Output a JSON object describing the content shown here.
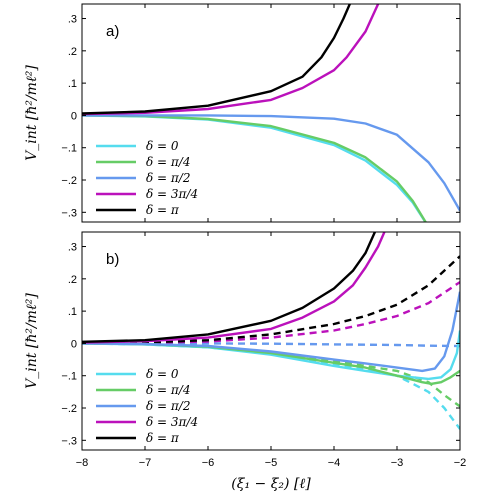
{
  "chart_data": [
    {
      "type": "line",
      "panel_label": "a)",
      "ylabel": "V_int [ħ²/mℓ²]",
      "xlabel": "",
      "xlim": [
        -8,
        -2
      ],
      "ylim": [
        -0.33,
        0.345
      ],
      "x_ticks": [
        -8,
        -7,
        -6,
        -5,
        -4,
        -3,
        -2
      ],
      "y_ticks": [
        -0.3,
        -0.2,
        -0.1,
        0,
        0.1,
        0.2,
        0.3
      ],
      "x_tick_labels_shown": false,
      "legend_position": "lower-left",
      "series": [
        {
          "name": "δ = 0",
          "color": "#55dcee",
          "style": "solid",
          "points": [
            [
              -8,
              0
            ],
            [
              -7,
              -0.003
            ],
            [
              -6,
              -0.013
            ],
            [
              -5,
              -0.038
            ],
            [
              -4,
              -0.092
            ],
            [
              -3.5,
              -0.14
            ],
            [
              -3,
              -0.215
            ],
            [
              -2.75,
              -0.27
            ],
            [
              -2.5,
              -0.345
            ]
          ]
        },
        {
          "name": "δ = π/4",
          "color": "#66cc66",
          "style": "solid",
          "points": [
            [
              -8,
              0
            ],
            [
              -7,
              -0.002
            ],
            [
              -6,
              -0.011
            ],
            [
              -5,
              -0.033
            ],
            [
              -4,
              -0.085
            ],
            [
              -3.5,
              -0.13
            ],
            [
              -3,
              -0.205
            ],
            [
              -2.75,
              -0.265
            ],
            [
              -2.5,
              -0.345
            ]
          ]
        },
        {
          "name": "δ = π/2",
          "color": "#6699ee",
          "style": "solid",
          "points": [
            [
              -8,
              0
            ],
            [
              -6,
              0
            ],
            [
              -5,
              -0.002
            ],
            [
              -4,
              -0.01
            ],
            [
              -3.5,
              -0.025
            ],
            [
              -3,
              -0.06
            ],
            [
              -2.5,
              -0.145
            ],
            [
              -2.25,
              -0.21
            ],
            [
              -2,
              -0.295
            ]
          ]
        },
        {
          "name": "δ = 3π/4",
          "color": "#bb11bb",
          "style": "solid",
          "points": [
            [
              -8,
              0.004
            ],
            [
              -7,
              0.008
            ],
            [
              -6,
              0.02
            ],
            [
              -5,
              0.048
            ],
            [
              -4.5,
              0.085
            ],
            [
              -4,
              0.14
            ],
            [
              -3.8,
              0.18
            ],
            [
              -3.5,
              0.26
            ],
            [
              -3.3,
              0.345
            ]
          ]
        },
        {
          "name": "δ = π",
          "color": "#000000",
          "style": "solid",
          "points": [
            [
              -8,
              0.006
            ],
            [
              -7,
              0.012
            ],
            [
              -6,
              0.03
            ],
            [
              -5,
              0.075
            ],
            [
              -4.5,
              0.12
            ],
            [
              -4.2,
              0.18
            ],
            [
              -4,
              0.24
            ],
            [
              -3.85,
              0.3
            ],
            [
              -3.75,
              0.345
            ]
          ]
        }
      ]
    },
    {
      "type": "line",
      "panel_label": "b)",
      "ylabel": "V_int [ħ²/mℓ²]",
      "xlabel": "(ξ₁ − ξ₂) [ℓ]",
      "xlim": [
        -8,
        -2
      ],
      "ylim": [
        -0.33,
        0.345
      ],
      "x_ticks": [
        -8,
        -7,
        -6,
        -5,
        -4,
        -3,
        -2
      ],
      "y_ticks": [
        -0.3,
        -0.2,
        -0.1,
        0,
        0.1,
        0.2,
        0.3
      ],
      "x_tick_labels_shown": true,
      "legend_position": "lower-left",
      "series": [
        {
          "name": "δ = 0",
          "color": "#55dcee",
          "style": "solid",
          "points": [
            [
              -8,
              0
            ],
            [
              -7,
              -0.003
            ],
            [
              -6,
              -0.012
            ],
            [
              -5,
              -0.035
            ],
            [
              -4,
              -0.07
            ],
            [
              -3.5,
              -0.085
            ],
            [
              -3,
              -0.1
            ],
            [
              -2.5,
              -0.11
            ],
            [
              -2.3,
              -0.105
            ],
            [
              -2.15,
              -0.08
            ],
            [
              -2.05,
              -0.03
            ],
            [
              -2,
              0.04
            ]
          ]
        },
        {
          "name": "δ = π/4",
          "color": "#66cc66",
          "style": "solid",
          "points": [
            [
              -8,
              0
            ],
            [
              -7,
              -0.002
            ],
            [
              -6,
              -0.01
            ],
            [
              -5,
              -0.03
            ],
            [
              -4,
              -0.06
            ],
            [
              -3.5,
              -0.075
            ],
            [
              -3,
              -0.1
            ],
            [
              -2.6,
              -0.12
            ],
            [
              -2.45,
              -0.125
            ],
            [
              -2.3,
              -0.12
            ],
            [
              -2.15,
              -0.105
            ],
            [
              -2,
              -0.085
            ]
          ]
        },
        {
          "name": "δ = π/2",
          "color": "#6699ee",
          "style": "solid",
          "points": [
            [
              -8,
              0
            ],
            [
              -7,
              -0.002
            ],
            [
              -6,
              -0.008
            ],
            [
              -5,
              -0.025
            ],
            [
              -4,
              -0.05
            ],
            [
              -3.5,
              -0.062
            ],
            [
              -3,
              -0.075
            ],
            [
              -2.6,
              -0.085
            ],
            [
              -2.4,
              -0.078
            ],
            [
              -2.25,
              -0.04
            ],
            [
              -2.12,
              0.04
            ],
            [
              -2,
              0.16
            ]
          ]
        },
        {
          "name": "δ = 3π/4",
          "color": "#bb11bb",
          "style": "solid",
          "points": [
            [
              -8,
              0.003
            ],
            [
              -7,
              0.007
            ],
            [
              -6,
              0.018
            ],
            [
              -5,
              0.045
            ],
            [
              -4.5,
              0.08
            ],
            [
              -4,
              0.13
            ],
            [
              -3.7,
              0.18
            ],
            [
              -3.5,
              0.235
            ],
            [
              -3.3,
              0.3
            ],
            [
              -3.2,
              0.345
            ]
          ]
        },
        {
          "name": "δ = π",
          "color": "#000000",
          "style": "solid",
          "points": [
            [
              -8,
              0.005
            ],
            [
              -7,
              0.01
            ],
            [
              -6,
              0.028
            ],
            [
              -5,
              0.07
            ],
            [
              -4.5,
              0.11
            ],
            [
              -4,
              0.17
            ],
            [
              -3.7,
              0.225
            ],
            [
              -3.5,
              0.28
            ],
            [
              -3.35,
              0.345
            ]
          ]
        },
        {
          "name": "",
          "color": "#55dcee",
          "style": "dashed",
          "points": [
            [
              -8,
              0
            ],
            [
              -7,
              -0.003
            ],
            [
              -6,
              -0.012
            ],
            [
              -5,
              -0.032
            ],
            [
              -4,
              -0.065
            ],
            [
              -3.5,
              -0.08
            ],
            [
              -3,
              -0.1
            ],
            [
              -2.5,
              -0.15
            ],
            [
              -2.25,
              -0.2
            ],
            [
              -2,
              -0.265
            ]
          ]
        },
        {
          "name": "",
          "color": "#66cc66",
          "style": "dashed",
          "points": [
            [
              -8,
              0
            ],
            [
              -7,
              -0.002
            ],
            [
              -6,
              -0.01
            ],
            [
              -5,
              -0.028
            ],
            [
              -4,
              -0.055
            ],
            [
              -3.5,
              -0.07
            ],
            [
              -3,
              -0.085
            ],
            [
              -2.5,
              -0.12
            ],
            [
              -2.25,
              -0.16
            ],
            [
              -2,
              -0.195
            ]
          ]
        },
        {
          "name": "",
          "color": "#6699ee",
          "style": "dashed",
          "points": [
            [
              -8,
              0
            ],
            [
              -6,
              0
            ],
            [
              -5,
              -0.001
            ],
            [
              -4,
              -0.003
            ],
            [
              -3,
              -0.005
            ],
            [
              -2.5,
              -0.007
            ],
            [
              -2,
              -0.008
            ]
          ]
        },
        {
          "name": "",
          "color": "#bb11bb",
          "style": "dashed",
          "points": [
            [
              -8,
              0.001
            ],
            [
              -7,
              0.002
            ],
            [
              -6,
              0.006
            ],
            [
              -5,
              0.018
            ],
            [
              -4,
              0.04
            ],
            [
              -3.5,
              0.06
            ],
            [
              -3,
              0.085
            ],
            [
              -2.5,
              0.125
            ],
            [
              -2,
              0.19
            ]
          ]
        },
        {
          "name": "",
          "color": "#000000",
          "style": "dashed",
          "points": [
            [
              -8,
              0.001
            ],
            [
              -7,
              0.003
            ],
            [
              -6,
              0.01
            ],
            [
              -5,
              0.028
            ],
            [
              -4,
              0.06
            ],
            [
              -3.5,
              0.085
            ],
            [
              -3,
              0.12
            ],
            [
              -2.5,
              0.18
            ],
            [
              -2,
              0.27
            ]
          ]
        }
      ]
    }
  ]
}
